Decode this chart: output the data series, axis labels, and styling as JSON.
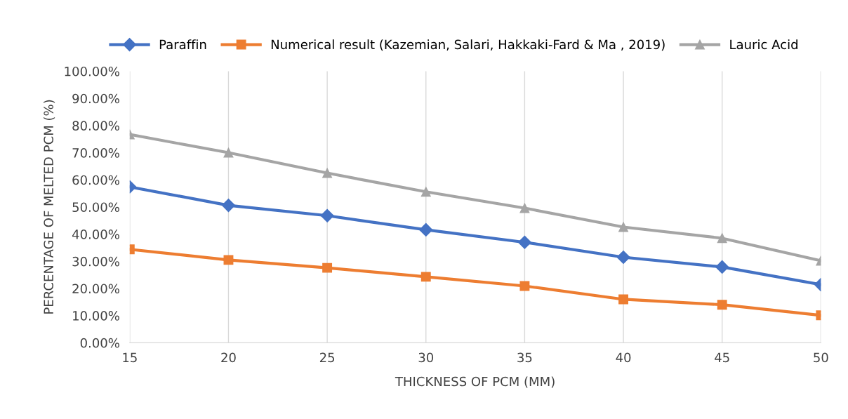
{
  "chart_data": {
    "type": "line",
    "xlabel": "THICKNESS OF PCM (MM)",
    "ylabel": "PERCENTAGE OF MELTED PCM (%)",
    "x": [
      15,
      20,
      25,
      30,
      35,
      40,
      45,
      50
    ],
    "series": [
      {
        "name": "Paraffin",
        "color": "#4472c4",
        "marker": "diamond",
        "values": [
          57.4,
          50.6,
          46.8,
          41.6,
          37.0,
          31.5,
          27.9,
          21.4
        ]
      },
      {
        "name": "Numerical result (Kazemian, Salari, Hakkaki-Fard & Ma , 2019)",
        "color": "#ed7d31",
        "marker": "square",
        "values": [
          34.4,
          30.5,
          27.6,
          24.3,
          20.9,
          16.0,
          14.0,
          10.1
        ]
      },
      {
        "name": "Lauric Acid",
        "color": "#a5a5a5",
        "marker": "triangle",
        "values": [
          76.7,
          70.0,
          62.5,
          55.6,
          49.6,
          42.6,
          38.5,
          30.2
        ]
      }
    ],
    "xlim": [
      15,
      50
    ],
    "xticks": [
      15,
      20,
      25,
      30,
      35,
      40,
      45,
      50
    ],
    "ylim": [
      0,
      100
    ],
    "yticks": [
      {
        "value": 0,
        "label": "0.00%"
      },
      {
        "value": 10,
        "label": "10.00%"
      },
      {
        "value": 20,
        "label": "20.00%"
      },
      {
        "value": 30,
        "label": "30.00%"
      },
      {
        "value": 40,
        "label": "40.00%"
      },
      {
        "value": 50,
        "label": "50.00%"
      },
      {
        "value": 60,
        "label": "60.00%"
      },
      {
        "value": 70,
        "label": "70.00%"
      },
      {
        "value": 80,
        "label": "80.00%"
      },
      {
        "value": 90,
        "label": "90.00%"
      },
      {
        "value": 100,
        "label": "100.00%"
      }
    ],
    "grid": "x",
    "legend": "top",
    "line_style": "solid"
  }
}
